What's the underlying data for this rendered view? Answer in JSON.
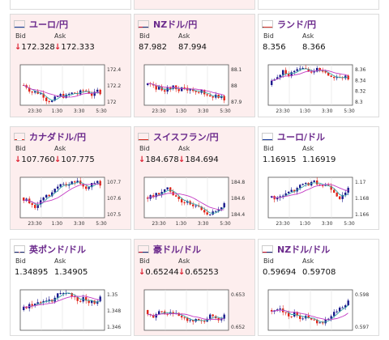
{
  "labels": {
    "bid": "Bid",
    "ask": "Ask"
  },
  "colors": {
    "up_bar": "#1a1a8c",
    "down_bar": "#e0261b",
    "ma_short": "#3aa6a6",
    "ma_long": "#c43cc4",
    "down_bg": "#fdeeee",
    "title": "#6b2a8c"
  },
  "cards": [
    {
      "pair": "ユーロ/円",
      "flag": "eu",
      "trend": "down",
      "bid": "172.328",
      "ask": "172.333",
      "arrows": true,
      "x_ticks": [
        "23:30",
        "1:30",
        "3:30",
        "5:30"
      ],
      "y_ticks": [
        "172.4",
        "172.2",
        "172"
      ]
    },
    {
      "pair": "NZドル/円",
      "flag": "nz",
      "trend": "down",
      "bid": "87.982",
      "ask": "87.994",
      "arrows": false,
      "x_ticks": [
        "23:30",
        "1:30",
        "3:30",
        "5:30"
      ],
      "y_ticks": [
        "88.1",
        "88",
        "87.9"
      ]
    },
    {
      "pair": "ランド/円",
      "flag": "za",
      "trend": "up",
      "bid": "8.356",
      "ask": "8.366",
      "arrows": false,
      "x_ticks": [
        "23:30",
        "1:30",
        "3:30",
        "5:30"
      ],
      "y_ticks": [
        "8.36",
        "8.34",
        "8.32",
        "8.3"
      ]
    },
    {
      "pair": "カナダドル/円",
      "flag": "ca",
      "trend": "down",
      "bid": "107.760",
      "ask": "107.775",
      "arrows": true,
      "x_ticks": [
        "23:30",
        "1:30",
        "3:30",
        "5:30"
      ],
      "y_ticks": [
        "107.7",
        "107.6",
        "107.5"
      ]
    },
    {
      "pair": "スイスフラン/円",
      "flag": "ch",
      "trend": "down",
      "bid": "184.678",
      "ask": "184.694",
      "arrows": true,
      "x_ticks": [
        "23:30",
        "1:30",
        "3:30",
        "5:30"
      ],
      "y_ticks": [
        "184.8",
        "184.6",
        "184.4"
      ]
    },
    {
      "pair": "ユーロ/ドル",
      "flag": "eu",
      "trend": "up",
      "bid": "1.16915",
      "ask": "1.16919",
      "arrows": false,
      "x_ticks": [
        "23:30",
        "1:30",
        "3:30",
        "5:30"
      ],
      "y_ticks": [
        "1.17",
        "1.168",
        "1.166"
      ]
    },
    {
      "pair": "英ポンド/ドル",
      "flag": "uk",
      "trend": "up",
      "bid": "1.34895",
      "ask": "1.34905",
      "arrows": false,
      "x_ticks": [],
      "y_ticks": [
        "1.35",
        "1.348",
        "1.346"
      ]
    },
    {
      "pair": "豪ドル/ドル",
      "flag": "au",
      "trend": "down",
      "bid": "0.65244",
      "ask": "0.65253",
      "arrows": true,
      "x_ticks": [],
      "y_ticks": [
        "0.653",
        "0.652"
      ]
    },
    {
      "pair": "NZドル/ドル",
      "flag": "nz",
      "trend": "up",
      "bid": "0.59694",
      "ask": "0.59708",
      "arrows": false,
      "x_ticks": [],
      "y_ticks": [
        "0.598",
        "0.597"
      ]
    }
  ]
}
